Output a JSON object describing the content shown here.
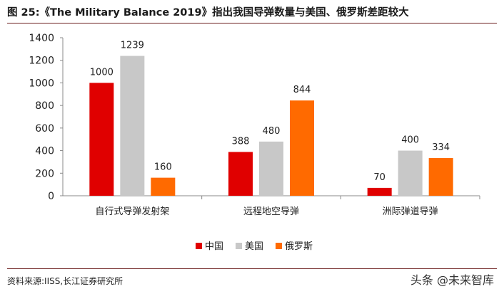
{
  "header": {
    "title": "图 25:《The Military Balance 2019》指出我国导弹数量与美国、俄罗斯差距较大"
  },
  "footer": {
    "source": "资料来源:IISS,长江证券研究所",
    "watermark": "头条 @未来智库"
  },
  "chart_data": {
    "type": "bar",
    "title": "",
    "xlabel": "",
    "ylabel": "",
    "ylim": [
      0,
      1400
    ],
    "yticks": [
      0,
      200,
      400,
      600,
      800,
      1000,
      1200,
      1400
    ],
    "grid": false,
    "legend_position": "bottom",
    "categories": [
      "自行式导弹发射架",
      "远程地空导弹",
      "洲际弹道导弹"
    ],
    "series": [
      {
        "name": "中国",
        "color": "#e00000",
        "values": [
          1000,
          388,
          70
        ]
      },
      {
        "name": "美国",
        "color": "#c8c8c8",
        "values": [
          1239,
          480,
          400
        ]
      },
      {
        "name": "俄罗斯",
        "color": "#ff6a00",
        "values": [
          160,
          844,
          334
        ]
      }
    ]
  }
}
